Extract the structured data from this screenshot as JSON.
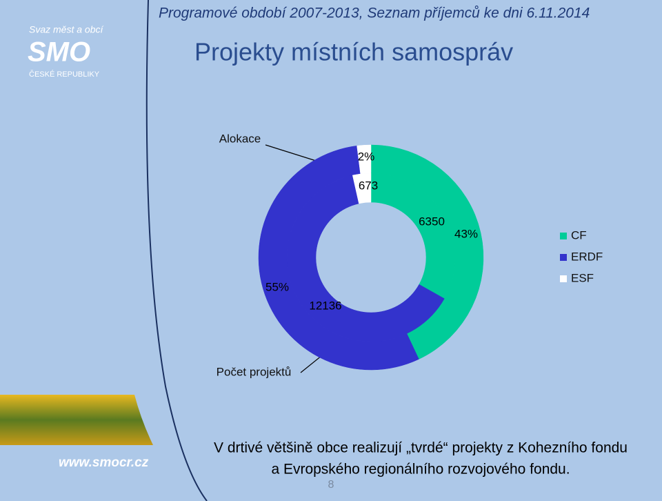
{
  "slide": {
    "header": "Programové období 2007-2013, Seznam příjemců ke dni 6.11.2014",
    "title": "Projekty místních samospráv",
    "logo": {
      "top": "Svaz měst a obcí",
      "main": "SMO",
      "bottom": "ČESKÉ REPUBLIKY"
    },
    "website": "www.smocr.cz",
    "footer": [
      "V drtivé většině obce realizují „tvrdé“ projekty z Kohezního fondu",
      "a Evropského regionálního rozvojového fondu."
    ],
    "page_number": "8"
  },
  "chart_data": {
    "type": "pie",
    "categories": [
      "CF",
      "ERDF",
      "ESF"
    ],
    "colors": [
      "#00cc99",
      "#3333cc",
      "#ffffff"
    ],
    "series": [
      {
        "name": "Alokace",
        "values": [
          43,
          55,
          2
        ],
        "value_labels": [
          "43%",
          "55%",
          "2%"
        ]
      },
      {
        "name": "Počet projektů",
        "values": [
          6350,
          12136,
          673
        ]
      }
    ]
  }
}
